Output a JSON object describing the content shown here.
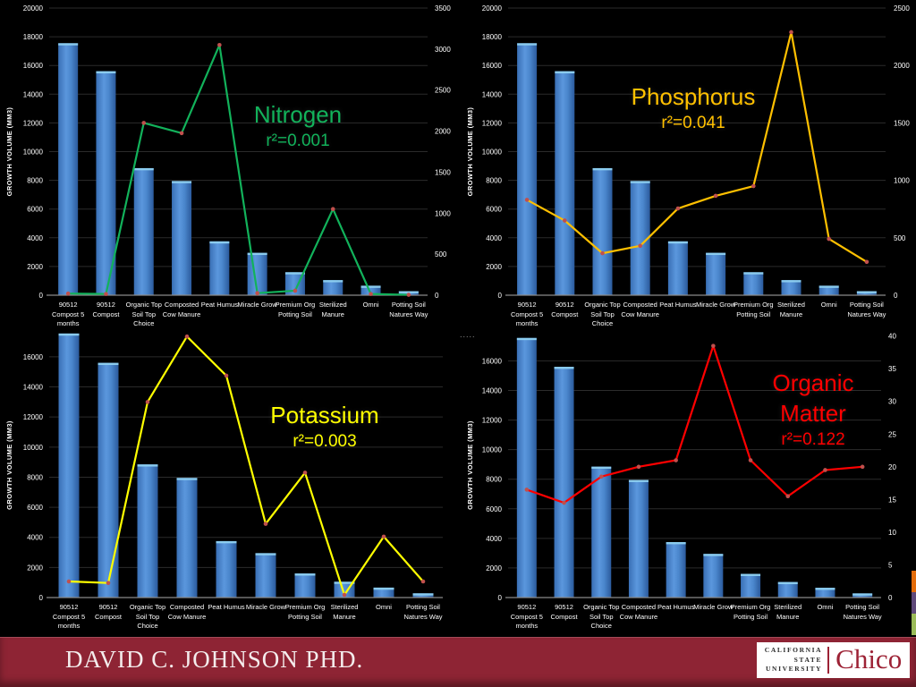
{
  "slide": {
    "background": "#000000"
  },
  "footer": {
    "author": "DAVID C. JOHNSON PHD.",
    "banner_color": "#8e2434",
    "logo": {
      "university_line1": "CALIFORNIA",
      "university_line2": "STATE",
      "university_line3": "UNIVERSITY",
      "wordmark": "Chico",
      "brand_red": "#9d2235"
    }
  },
  "edge_strip": {
    "colors": [
      "#e36c0a",
      "#5f497a",
      "#9bbb59"
    ]
  },
  "clipped_label": ".....",
  "marker_color": "#c0504d",
  "bar_color": "#3d7cc9",
  "chart_data": [
    {
      "id": "nitrogen",
      "type": "bar+line",
      "title": "Nitrogen",
      "r2": "r²=0.001",
      "title_color": "#12b25b",
      "line_color": "#12b25b",
      "ylabel": "GROWTH VOLUME (MM3)",
      "categories": [
        "90512 Compost 5 months",
        "90512 Compost",
        "Organic Top Soil Top Choice",
        "Composted Cow Manure",
        "Peat Humus",
        "Miracle Grow",
        "Premium Org Potting Soil",
        "Sterilized Manure",
        "Omni",
        "Potting Soil Natures Way"
      ],
      "bar_series": {
        "name": "growth volume",
        "values": [
          17550,
          15600,
          8850,
          7950,
          3750,
          2950,
          1600,
          1050,
          660,
          280
        ]
      },
      "line_series": {
        "name": "Nitrogen",
        "axis": "right",
        "values": [
          20,
          15,
          2100,
          1975,
          3050,
          25,
          55,
          1050,
          15,
          5
        ]
      },
      "left_axis": {
        "min": 0,
        "plot_max": 20000,
        "ticks": [
          0,
          2000,
          4000,
          6000,
          8000,
          10000,
          12000,
          14000,
          16000,
          18000,
          20000
        ]
      },
      "right_axis": {
        "min": 0,
        "plot_max": 3500,
        "ticks": [
          0,
          500,
          1000,
          1500,
          2000,
          2500,
          3000,
          3500
        ]
      }
    },
    {
      "id": "phosphorus",
      "type": "bar+line",
      "title": "Phosphorus",
      "r2": "r²=0.041",
      "title_color": "#ffc000",
      "line_color": "#ffc000",
      "ylabel": "GROWTH VOLUME (MM3)",
      "categories": [
        "90512 Compost 5 months",
        "90512 Compost",
        "Organic Top Soil Top Choice",
        "Composted Cow Manure",
        "Peat Humus",
        "Miracle Grow",
        "Premium Org Potting Soil",
        "Sterilized Manure",
        "Omni",
        "Potting Soil Natures Way"
      ],
      "bar_series": {
        "name": "growth volume",
        "values": [
          17550,
          15600,
          8850,
          7950,
          3750,
          2950,
          1600,
          1050,
          660,
          280
        ]
      },
      "line_series": {
        "name": "Phosphorus",
        "axis": "right",
        "values": [
          830,
          650,
          365,
          430,
          755,
          865,
          950,
          2290,
          490,
          290
        ]
      },
      "left_axis": {
        "min": 0,
        "plot_max": 20000,
        "ticks": [
          0,
          2000,
          4000,
          6000,
          8000,
          10000,
          12000,
          14000,
          16000,
          18000,
          20000
        ]
      },
      "right_axis": {
        "min": 0,
        "plot_max": 2500,
        "ticks": [
          0,
          500,
          1000,
          1500,
          2000,
          2500
        ]
      }
    },
    {
      "id": "potassium",
      "type": "bar+line",
      "title": "Potassium",
      "r2": "r²=0.003",
      "title_color": "#ffff00",
      "line_color": "#ffff00",
      "ylabel": "GROWTH VOLUME (MM3)",
      "categories": [
        "90512 Compost 5 months",
        "90512 Compost",
        "Organic Top Soil Top Choice",
        "Composted Cow Manure",
        "Peat Humus",
        "Miracle Grow",
        "Premium Org Potting Soil",
        "Sterilized Manure",
        "Omni",
        "Potting Soil Natures Way"
      ],
      "bar_series": {
        "name": "growth volume",
        "values": [
          17550,
          15600,
          8850,
          7950,
          3750,
          2950,
          1600,
          1050,
          660,
          280
        ]
      },
      "line_series": {
        "name": "Potassium",
        "axis": "left",
        "values": [
          1070,
          970,
          13000,
          17350,
          14750,
          4900,
          8300,
          180,
          4050,
          1070
        ]
      },
      "left_axis": {
        "min": 0,
        "plot_max": 17600,
        "ticks": [
          0,
          2000,
          4000,
          6000,
          8000,
          10000,
          12000,
          14000,
          16000
        ]
      },
      "right_axis": null
    },
    {
      "id": "organic-matter",
      "type": "bar+line",
      "title": "Organic Matter",
      "r2": "r²=0.122",
      "title_color": "#ff0000",
      "line_color": "#ff0000",
      "ylabel": "GROWTH VOLUME (MM3)",
      "categories": [
        "90512 Compost 5 months",
        "90512 Compost",
        "Organic Top Soil Top Choice",
        "Composted Cow Manure",
        "Peat Humus",
        "Miracle Grow",
        "Premium Org Potting Soil",
        "Sterilized Manure",
        "Omni",
        "Potting Soil Natures Way"
      ],
      "bar_series": {
        "name": "growth volume",
        "values": [
          17550,
          15600,
          8850,
          7950,
          3750,
          2950,
          1600,
          1050,
          660,
          280
        ]
      },
      "line_series": {
        "name": "Organic Matter",
        "axis": "right",
        "values": [
          16.5,
          14.5,
          18.5,
          20,
          21,
          38.5,
          21,
          15.5,
          19.5,
          20
        ]
      },
      "left_axis": {
        "min": 0,
        "plot_max": 17900,
        "ticks": [
          0,
          2000,
          4000,
          6000,
          8000,
          10000,
          12000,
          14000,
          16000
        ]
      },
      "right_axis": {
        "min": 0,
        "plot_max": 40.5,
        "ticks": [
          0,
          5,
          10,
          15,
          20,
          25,
          30,
          35,
          40
        ]
      }
    }
  ]
}
